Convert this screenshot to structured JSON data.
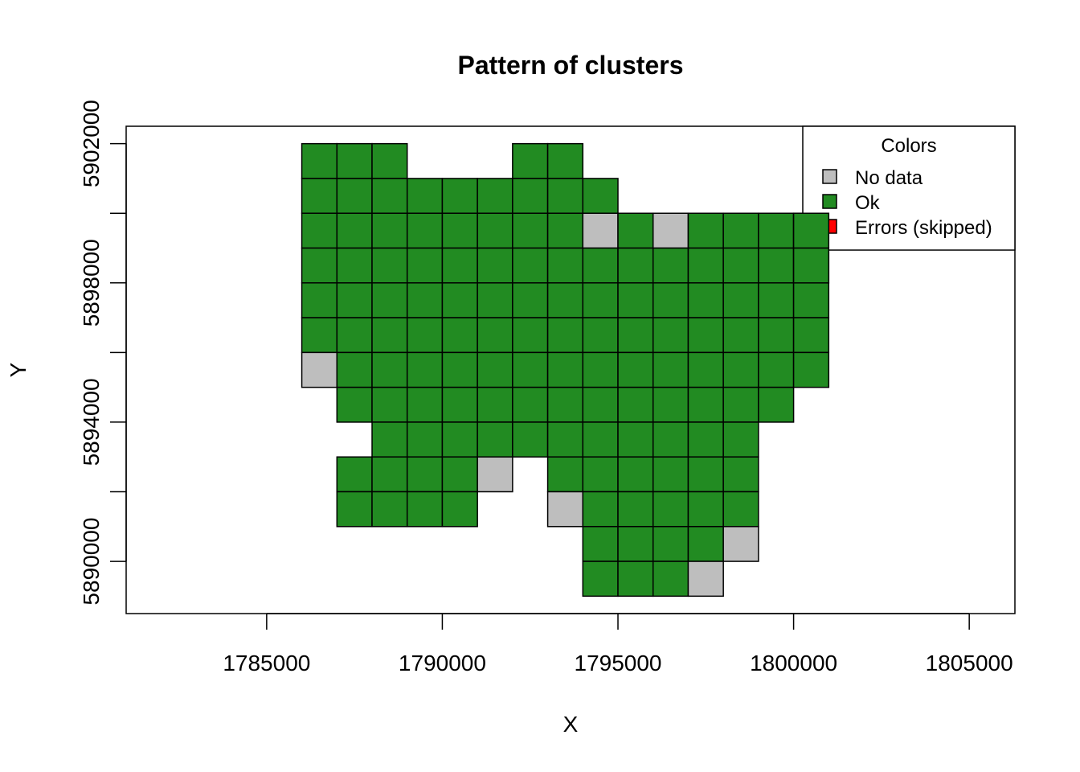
{
  "chart_data": {
    "type": "heatmap",
    "title": "Pattern of clusters",
    "xlabel": "X",
    "ylabel": "Y",
    "xlim": [
      1781000,
      1806300
    ],
    "ylim": [
      5888500,
      5902500
    ],
    "x_ticks": [
      {
        "value": 1785000,
        "label": "1785000"
      },
      {
        "value": 1790000,
        "label": "1790000"
      },
      {
        "value": 1795000,
        "label": "1795000"
      },
      {
        "value": 1800000,
        "label": "1800000"
      },
      {
        "value": 1805000,
        "label": "1805000"
      }
    ],
    "y_ticks": [
      {
        "value": 5890000,
        "label": "5890000"
      },
      {
        "value": 5892000,
        "label": ""
      },
      {
        "value": 5894000,
        "label": "5894000"
      },
      {
        "value": 5896000,
        "label": ""
      },
      {
        "value": 5898000,
        "label": "5898000"
      },
      {
        "value": 5900000,
        "label": ""
      },
      {
        "value": 5902000,
        "label": "5902000"
      }
    ],
    "cell_size": 1000,
    "x_origin": 1786000,
    "y_top": 5902000,
    "legend": {
      "title": "Colors",
      "placement": "top-right",
      "entries": [
        {
          "label": "No data",
          "color": "#bebebe"
        },
        {
          "label": "Ok",
          "color": "#228b22"
        },
        {
          "label": "Errors (skipped)",
          "color": "#ff0000"
        }
      ]
    },
    "categories": {
      "G": "No data",
      "O": "Ok"
    },
    "colors": {
      "G": "#bebebe",
      "O": "#228b22"
    },
    "grid_rows": [
      "OOO...OO.......",
      "OOOOOOOOO......",
      "OOOOOOOOGOGOOOO",
      "OOOOOOOOOOOOOOO",
      "OOOOOOOOOOOOOOO",
      "OOOOOOOOOOOOOOO",
      "GOOOOOOOOOOOOOO",
      ".OOOOOOOOOOOOO.",
      "..OOOOOOOOOOO..",
      ".OOOOG.OOOOOO..",
      ".OOOO..GOOOOO..",
      "........OOOOG..",
      "........OOOG..."
    ]
  }
}
